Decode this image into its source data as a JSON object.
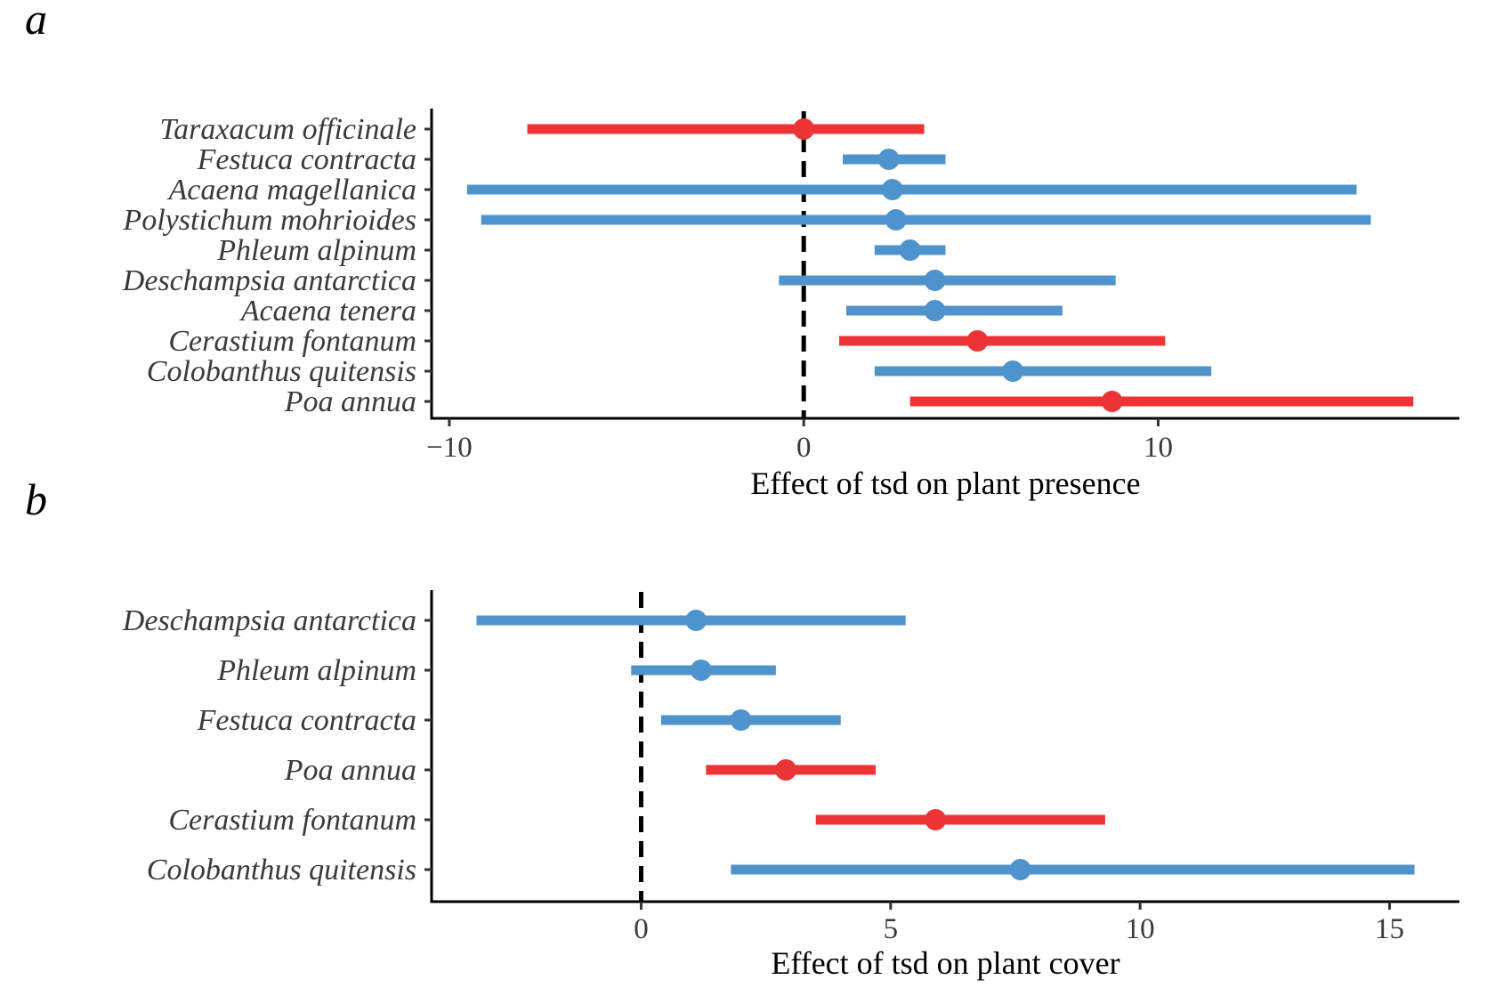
{
  "colors": {
    "native": "#4e93cc",
    "nonnative": "#ec3436",
    "axis": "#000000"
  },
  "chart_data": [
    {
      "type": "forest",
      "panel_label": "a",
      "xlabel": "Effect of tsd on plant presence",
      "xlim": [
        -10.5,
        18.5
      ],
      "xticks": [
        -10,
        0,
        10
      ],
      "xtick_labels": [
        "−10",
        "0",
        "10"
      ],
      "reference_line": 0,
      "grid": false,
      "rows": [
        {
          "species": "Taraxacum officinale",
          "estimate": 0.0,
          "lower": -7.8,
          "upper": 3.4,
          "group": "nonnative"
        },
        {
          "species": "Festuca contracta",
          "estimate": 2.4,
          "lower": 1.1,
          "upper": 4.0,
          "group": "native"
        },
        {
          "species": "Acaena magellanica",
          "estimate": 2.5,
          "lower": -9.5,
          "upper": 15.6,
          "group": "native"
        },
        {
          "species": "Polystichum mohrioides",
          "estimate": 2.6,
          "lower": -9.1,
          "upper": 16.0,
          "group": "native"
        },
        {
          "species": "Phleum alpinum",
          "estimate": 3.0,
          "lower": 2.0,
          "upper": 4.0,
          "group": "native"
        },
        {
          "species": "Deschampsia antarctica",
          "estimate": 3.7,
          "lower": -0.7,
          "upper": 8.8,
          "group": "native"
        },
        {
          "species": "Acaena tenera",
          "estimate": 3.7,
          "lower": 1.2,
          "upper": 7.3,
          "group": "native"
        },
        {
          "species": "Cerastium fontanum",
          "estimate": 4.9,
          "lower": 1.0,
          "upper": 10.2,
          "group": "nonnative"
        },
        {
          "species": "Colobanthus quitensis",
          "estimate": 5.9,
          "lower": 2.0,
          "upper": 11.5,
          "group": "native"
        },
        {
          "species": "Poa annua",
          "estimate": 8.7,
          "lower": 3.0,
          "upper": 17.2,
          "group": "nonnative"
        }
      ]
    },
    {
      "type": "forest",
      "panel_label": "b",
      "xlabel": "Effect of tsd on plant cover",
      "xlim": [
        -4.2,
        16.4
      ],
      "xticks": [
        0,
        5,
        10,
        15
      ],
      "xtick_labels": [
        "0",
        "5",
        "10",
        "15"
      ],
      "reference_line": 0,
      "grid": false,
      "rows": [
        {
          "species": "Deschampsia antarctica",
          "estimate": 1.1,
          "lower": -3.3,
          "upper": 5.3,
          "group": "native"
        },
        {
          "species": "Phleum alpinum",
          "estimate": 1.2,
          "lower": -0.2,
          "upper": 2.7,
          "group": "native"
        },
        {
          "species": "Festuca contracta",
          "estimate": 2.0,
          "lower": 0.4,
          "upper": 4.0,
          "group": "native"
        },
        {
          "species": "Poa annua",
          "estimate": 2.9,
          "lower": 1.3,
          "upper": 4.7,
          "group": "nonnative"
        },
        {
          "species": "Cerastium fontanum",
          "estimate": 5.9,
          "lower": 3.5,
          "upper": 9.3,
          "group": "nonnative"
        },
        {
          "species": "Colobanthus quitensis",
          "estimate": 7.6,
          "lower": 1.8,
          "upper": 15.5,
          "group": "native"
        }
      ]
    }
  ]
}
